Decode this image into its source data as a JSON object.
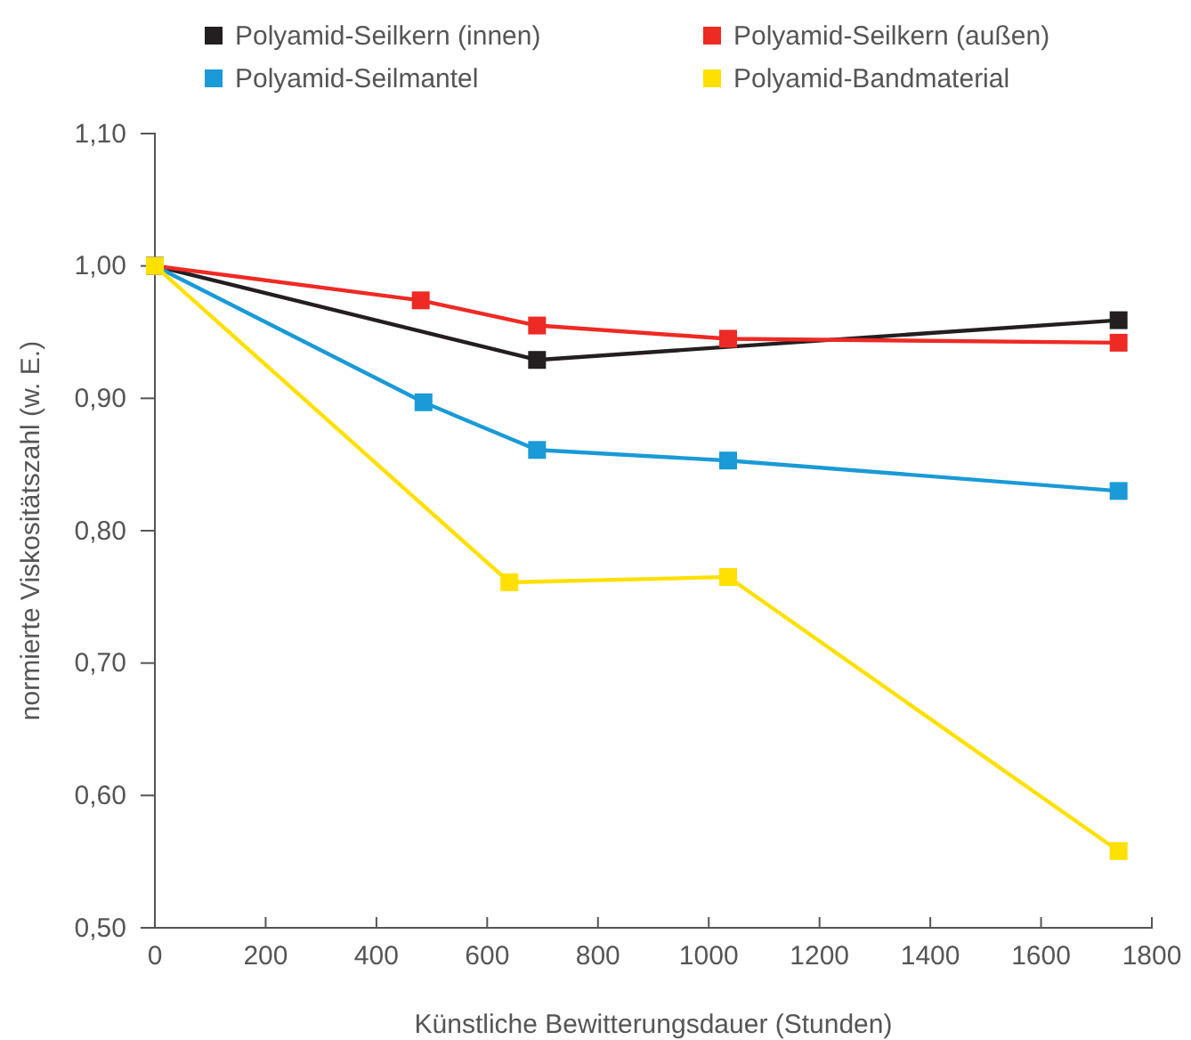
{
  "chart_data": {
    "type": "line",
    "xlabel": "Künstliche Bewitterungsdauer (Stunden)",
    "ylabel": "normierte Viskositätszahl (w. E.)",
    "xlim": [
      0,
      1800
    ],
    "xticks": [
      0,
      200,
      400,
      600,
      800,
      1000,
      1200,
      1400,
      1600,
      1800
    ],
    "ylim": [
      0.5,
      1.1
    ],
    "yticks": [
      {
        "value": 0.5,
        "label": "0,50"
      },
      {
        "value": 0.6,
        "label": "0,60"
      },
      {
        "value": 0.7,
        "label": "0,70"
      },
      {
        "value": 0.8,
        "label": "0,80"
      },
      {
        "value": 0.9,
        "label": "0,90"
      },
      {
        "value": 1.0,
        "label": "1,00"
      },
      {
        "value": 1.1,
        "label": "1,10"
      }
    ],
    "marker": "square",
    "legend": "top",
    "grid": false,
    "series": [
      {
        "name": "Polyamid-Seilkern (innen)",
        "color": "#231f20",
        "x": [
          0,
          690,
          1740
        ],
        "values": [
          1.0,
          0.929,
          0.959
        ]
      },
      {
        "name": "Polyamid-Seilkern (außen)",
        "color": "#ee2a24",
        "x": [
          0,
          480,
          690,
          1035,
          1740
        ],
        "values": [
          1.0,
          0.974,
          0.955,
          0.945,
          0.942
        ]
      },
      {
        "name": "Polyamid-Seilmantel",
        "color": "#1a9ad6",
        "x": [
          0,
          485,
          690,
          1035,
          1740
        ],
        "values": [
          1.0,
          0.897,
          0.861,
          0.853,
          0.83
        ]
      },
      {
        "name": "Polyamid-Bandmaterial",
        "color": "#ffe000",
        "x": [
          0,
          640,
          1035,
          1740
        ],
        "values": [
          1.0,
          0.761,
          0.765,
          0.558
        ]
      }
    ]
  }
}
